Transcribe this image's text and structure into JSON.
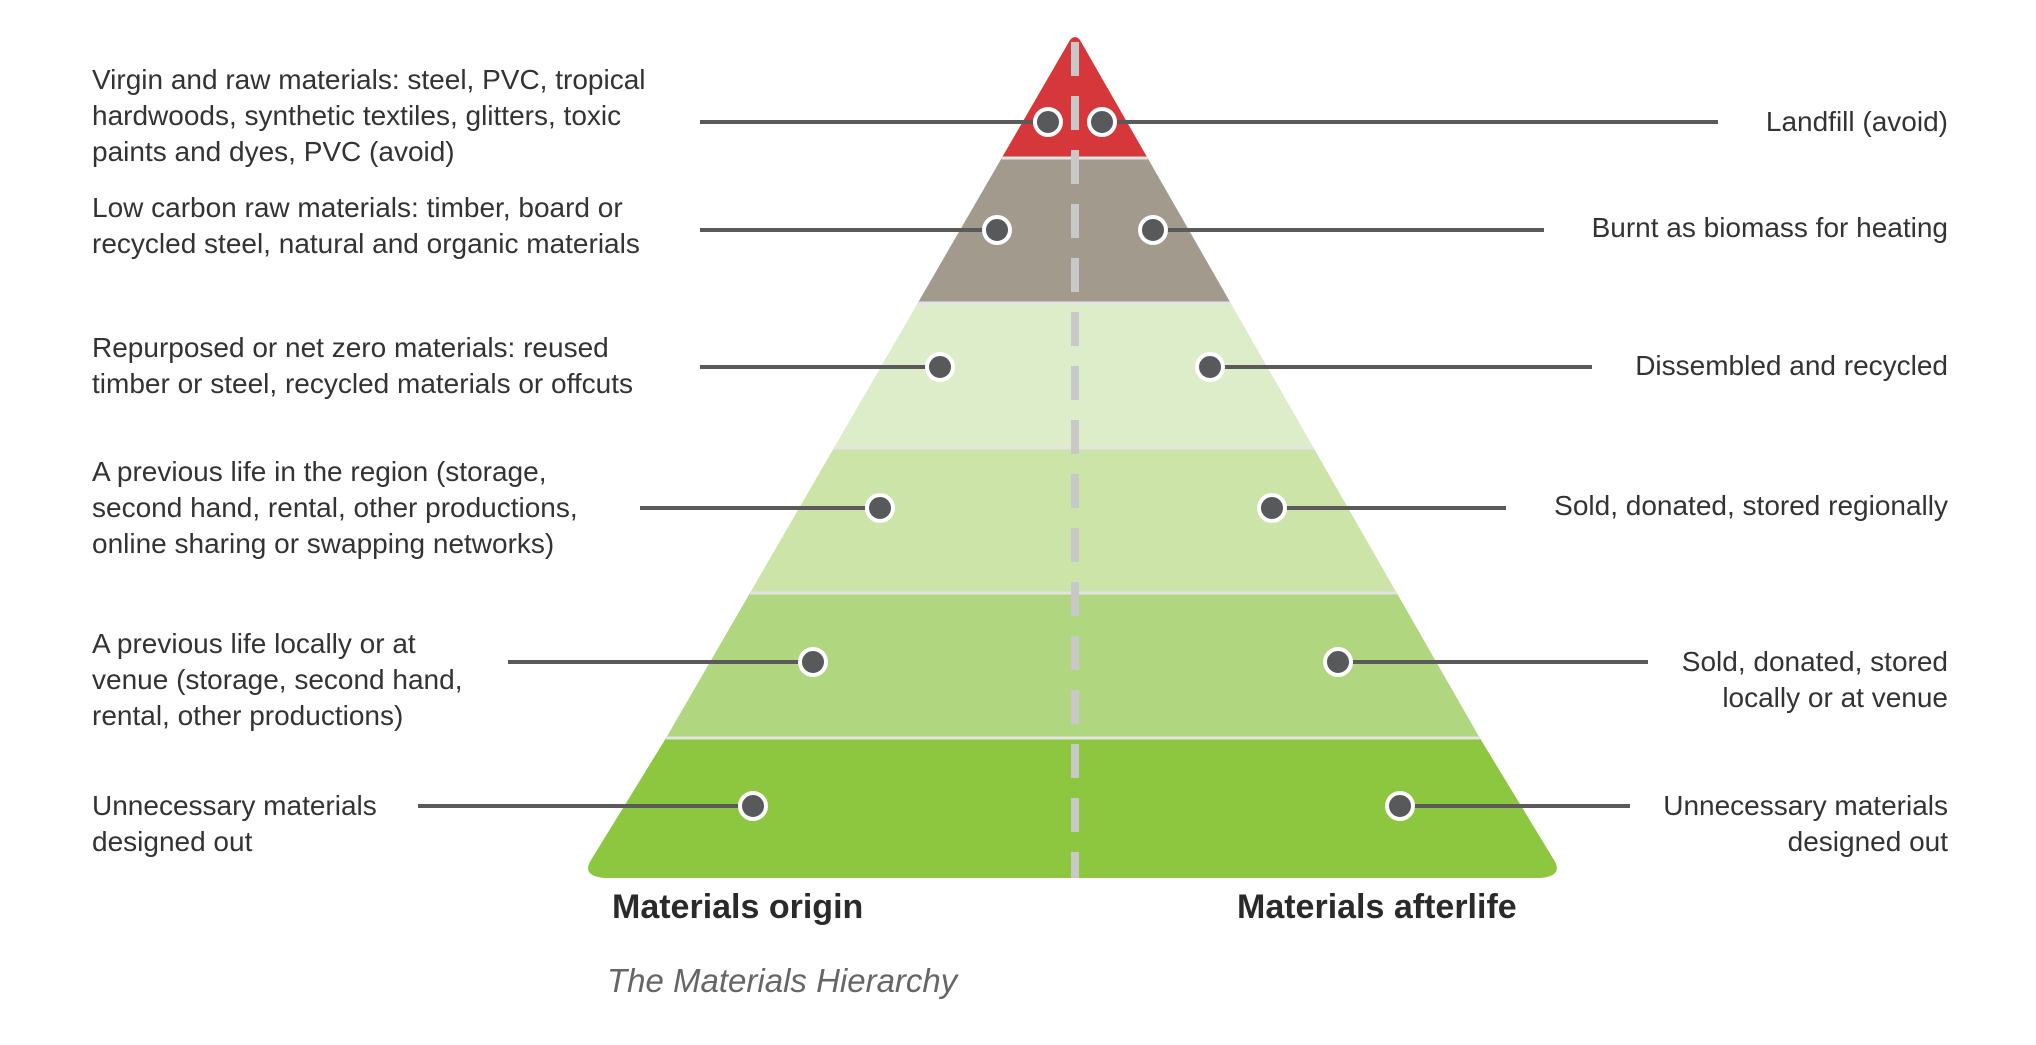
{
  "caption": "The Materials Hierarchy",
  "origin_title": "Materials origin",
  "afterlife_title": "Materials afterlife",
  "colors": {
    "tiers": [
      "#d6373a",
      "#a29a8d",
      "#deedc9",
      "#cce4a8",
      "#b0d67f",
      "#8dc63f"
    ],
    "leader": "#5a5a5a",
    "dot": "#58595b",
    "divider": "#c8c8c8"
  },
  "tiers": [
    {
      "origin": "Virgin and raw materials: steel, PVC, tropical\nhardwoods, synthetic textiles, glitters, toxic\npaints and dyes, PVC (avoid)",
      "afterlife": "Landfill (avoid)"
    },
    {
      "origin": "Low carbon raw materials: timber, board or\nrecycled steel, natural and organic materials",
      "afterlife": "Burnt as biomass for heating"
    },
    {
      "origin": "Repurposed or net zero materials: reused\ntimber or steel, recycled materials or offcuts",
      "afterlife": "Dissembled and recycled"
    },
    {
      "origin": "A previous life in the region (storage,\nsecond hand, rental, other productions,\nonline sharing or swapping networks)",
      "afterlife": "Sold, donated, stored regionally"
    },
    {
      "origin": "A previous life locally or at\nvenue (storage, second hand,\nrental, other productions)",
      "afterlife": "Sold, donated, stored\nlocally or at venue"
    },
    {
      "origin": "Unnecessary materials\ndesigned out",
      "afterlife": "Unnecessary materials\ndesigned out"
    }
  ]
}
